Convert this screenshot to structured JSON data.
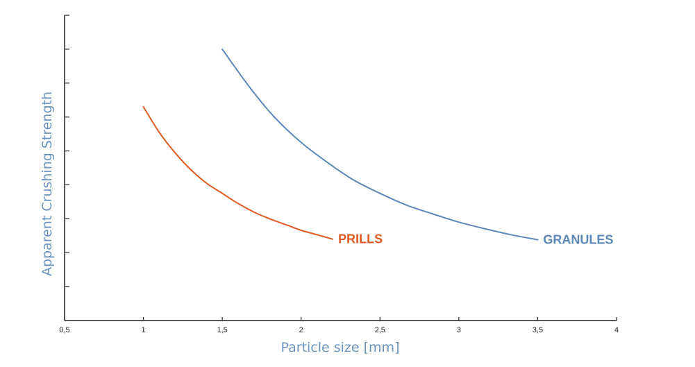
{
  "chart_data": {
    "type": "line",
    "title": "",
    "xlabel": "Particle size [mm]",
    "ylabel": "Apparent Crushing Strength",
    "xlim": [
      0.5,
      4
    ],
    "ylim": [
      0,
      9
    ],
    "x_ticks": [
      0.5,
      1,
      1.5,
      2,
      2.5,
      3,
      3.5,
      4
    ],
    "x_tick_labels": [
      "0,5",
      "1",
      "1,5",
      "2",
      "2,5",
      "3",
      "3,5",
      "4"
    ],
    "y_ticks": [
      1,
      2,
      3,
      4,
      5,
      6,
      7,
      8,
      9
    ],
    "y_tick_labels_shown": false,
    "grid": false,
    "legend": "inline labels at line ends",
    "axis_title_color": "#6a93bf",
    "series": [
      {
        "name": "PRILLS",
        "color": "#e05a24",
        "x": [
          1.0,
          1.1,
          1.2,
          1.3,
          1.4,
          1.5,
          1.6,
          1.7,
          1.8,
          1.9,
          2.0,
          2.1,
          2.2
        ],
        "y": [
          6.3,
          5.55,
          4.95,
          4.45,
          4.05,
          3.75,
          3.45,
          3.2,
          3.0,
          2.83,
          2.66,
          2.53,
          2.4
        ]
      },
      {
        "name": "GRANULES",
        "color": "#5b88b8",
        "x": [
          1.5,
          1.67,
          1.83,
          2.0,
          2.17,
          2.33,
          2.5,
          2.67,
          2.83,
          3.0,
          3.17,
          3.33,
          3.5
        ],
        "y": [
          8.0,
          6.9,
          6.0,
          5.25,
          4.65,
          4.15,
          3.75,
          3.4,
          3.15,
          2.9,
          2.7,
          2.53,
          2.38
        ]
      }
    ]
  }
}
